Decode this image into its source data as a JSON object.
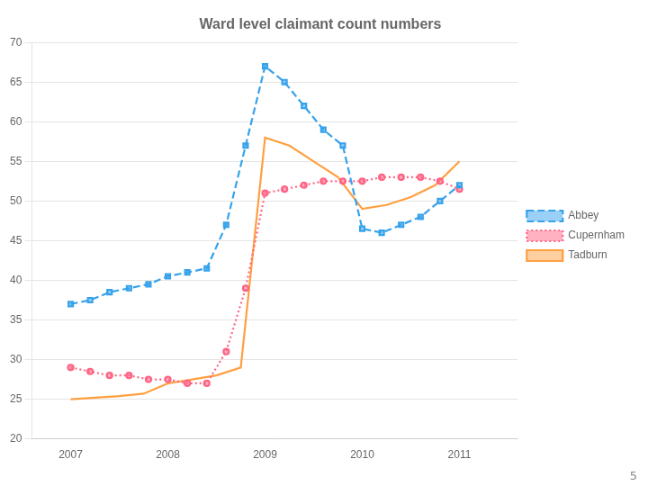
{
  "chart_data": {
    "type": "line",
    "title": "Ward level claimant count numbers",
    "series": [
      {
        "name": "Abbey",
        "line_style": "dashed",
        "marker": "square",
        "x": [
          2007.0,
          2007.2,
          2007.4,
          2007.6,
          2007.8,
          2008.0,
          2008.2,
          2008.4,
          2008.6,
          2008.8,
          2009.0,
          2009.2,
          2009.4,
          2009.6,
          2009.8,
          2010.0,
          2010.2,
          2010.4,
          2010.6,
          2010.8,
          2011.0
        ],
        "values": [
          37,
          37.5,
          38.5,
          39.0,
          39.5,
          40.5,
          41.0,
          41.5,
          47.0,
          57.0,
          67.0,
          65.0,
          62.0,
          59.0,
          57.0,
          46.5,
          46.0,
          47.0,
          48.0,
          50.0,
          52.0
        ]
      },
      {
        "name": "Cupernham",
        "line_style": "dotted",
        "marker": "circle",
        "x": [
          2007.0,
          2007.2,
          2007.4,
          2007.6,
          2007.8,
          2008.0,
          2008.2,
          2008.4,
          2008.6,
          2008.8,
          2009.0,
          2009.2,
          2009.4,
          2009.6,
          2009.8,
          2010.0,
          2010.2,
          2010.4,
          2010.6,
          2010.8,
          2011.0
        ],
        "values": [
          29.0,
          28.5,
          28.0,
          28.0,
          27.5,
          27.5,
          27.0,
          27.0,
          31.0,
          39.0,
          51.0,
          51.5,
          52.0,
          52.5,
          52.5,
          52.5,
          53.0,
          53.0,
          53.0,
          52.5,
          51.5
        ]
      },
      {
        "name": "Tadburn",
        "line_style": "solid",
        "marker": "none",
        "x": [
          2007.0,
          2007.25,
          2007.5,
          2007.75,
          2008.0,
          2008.25,
          2008.5,
          2008.75,
          2009.0,
          2009.25,
          2009.5,
          2009.75,
          2010.0,
          2010.25,
          2010.5,
          2010.75,
          2011.0
        ],
        "values": [
          25.0,
          25.2,
          25.4,
          25.7,
          27.0,
          27.5,
          28.0,
          29.0,
          58.0,
          57.0,
          55.0,
          53.0,
          49.0,
          49.5,
          50.5,
          52.0,
          55.0
        ]
      }
    ],
    "xlim": [
      2006.6,
      2011.6
    ],
    "xticks": [
      2007,
      2008,
      2009,
      2010,
      2011
    ],
    "ylim": [
      20,
      70
    ],
    "yticks": [
      20,
      25,
      30,
      35,
      40,
      45,
      50,
      55,
      60,
      65,
      70
    ],
    "grid": "y",
    "legend": "right",
    "annotations": [
      "5"
    ]
  }
}
